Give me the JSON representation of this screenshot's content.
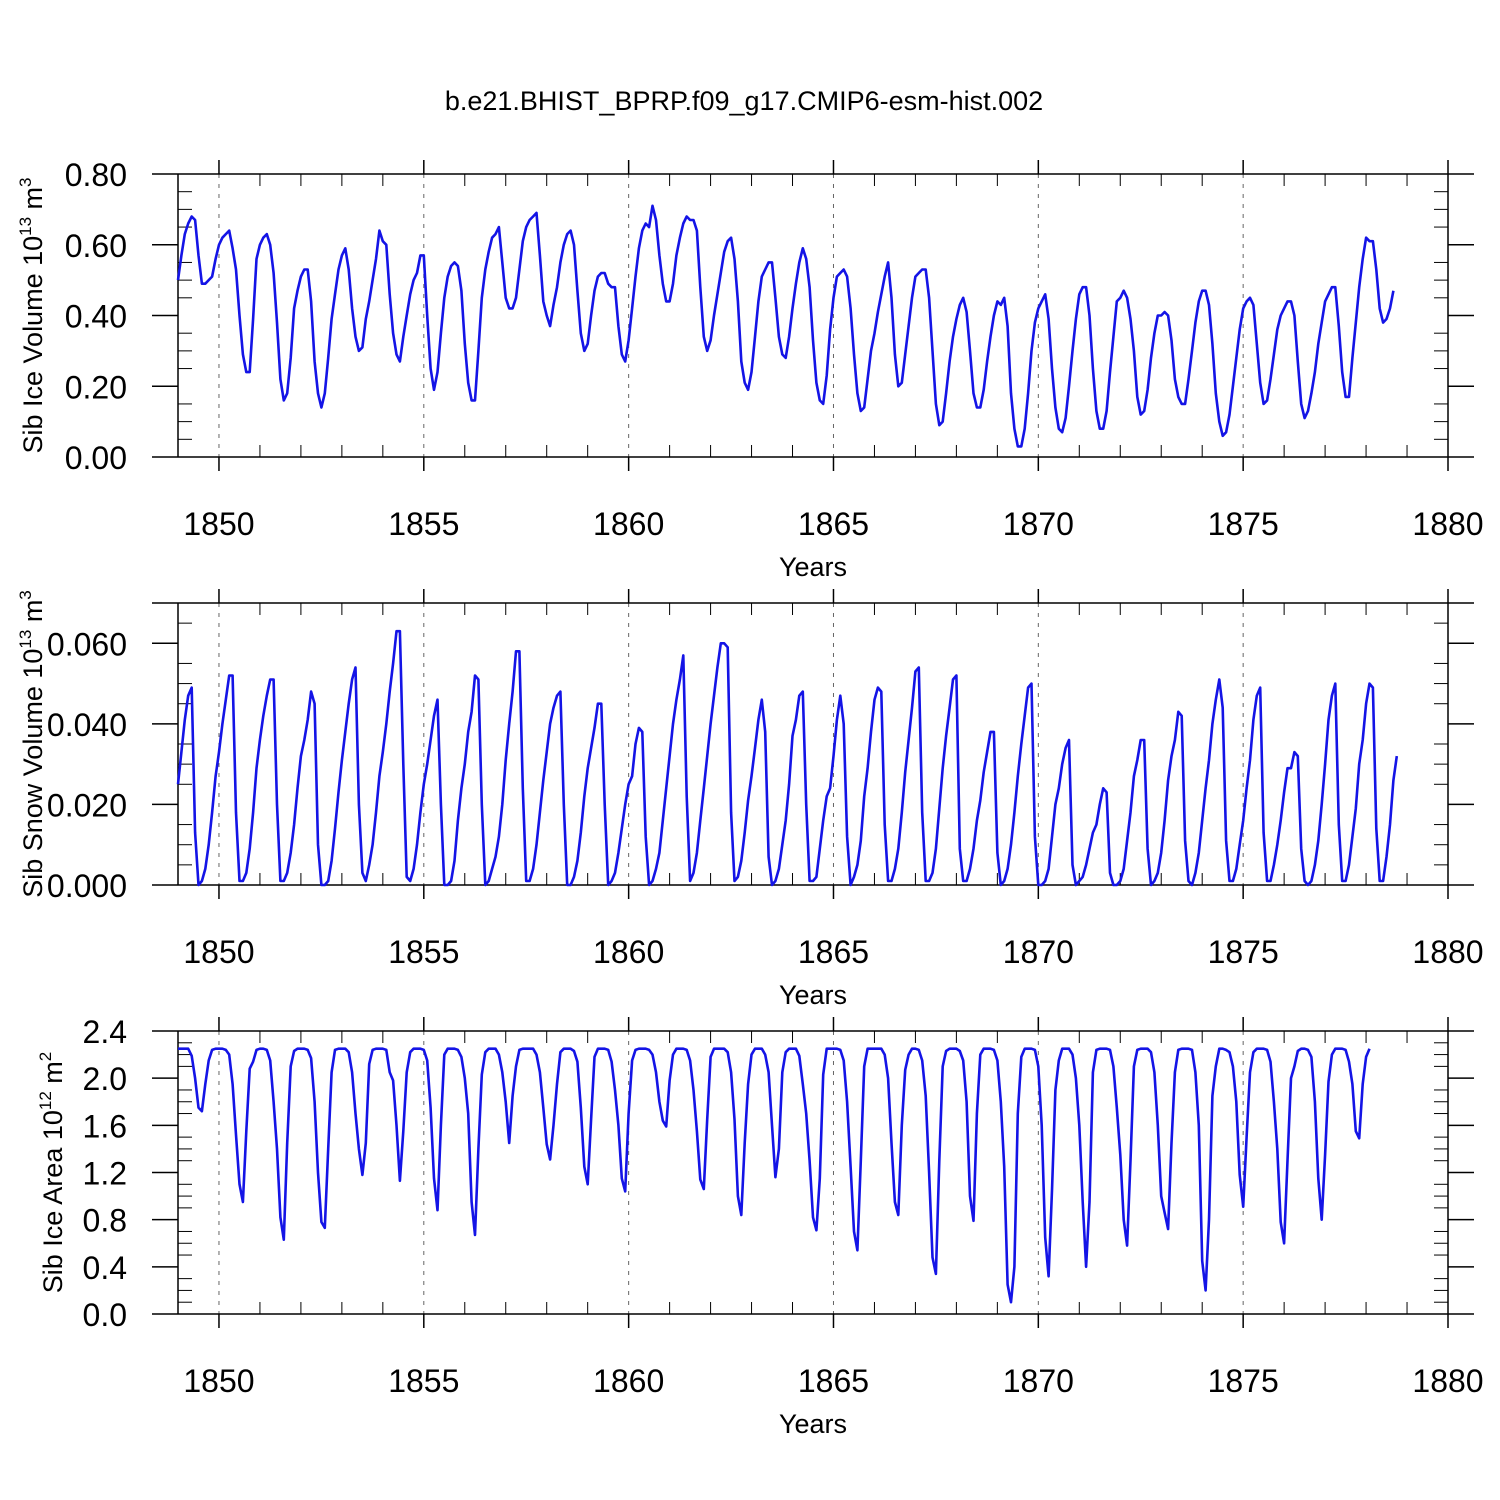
{
  "title": "b.e21.BHIST_BPRP.f09_g17.CMIP6-esm-hist.002",
  "chart_data": [
    {
      "type": "line",
      "ylabel_main": "Sib Ice Volume 10",
      "ylabel_exp": "13",
      "ylabel_unit": " m",
      "ylabel_unit_exp": "3",
      "xlabel": "Years",
      "xlim": [
        1849.0,
        1880.0
      ],
      "ylim": [
        0.0,
        0.8
      ],
      "xticks": [
        1850,
        1855,
        1860,
        1865,
        1870,
        1875,
        1880
      ],
      "xtick_labels": [
        "1850",
        "1855",
        "1860",
        "1865",
        "1870",
        "1875",
        "1880"
      ],
      "yticks": [
        0.0,
        0.2,
        0.4,
        0.6,
        0.8
      ],
      "ytick_labels": [
        "0.00",
        "0.20",
        "0.40",
        "0.60",
        "0.80"
      ],
      "yminor": 0.05,
      "line_color": "#1414e6",
      "start_year": 1849.0,
      "step": 0.0833333,
      "values": [
        0.5,
        0.57,
        0.63,
        0.66,
        0.68,
        0.67,
        0.57,
        0.49,
        0.49,
        0.5,
        0.51,
        0.56,
        0.6,
        0.62,
        0.63,
        0.64,
        0.59,
        0.53,
        0.4,
        0.29,
        0.24,
        0.24,
        0.39,
        0.56,
        0.6,
        0.62,
        0.63,
        0.6,
        0.52,
        0.38,
        0.22,
        0.16,
        0.18,
        0.28,
        0.42,
        0.47,
        0.51,
        0.53,
        0.53,
        0.44,
        0.27,
        0.18,
        0.14,
        0.18,
        0.28,
        0.39,
        0.46,
        0.53,
        0.57,
        0.59,
        0.53,
        0.42,
        0.34,
        0.3,
        0.31,
        0.39,
        0.44,
        0.5,
        0.56,
        0.64,
        0.61,
        0.6,
        0.46,
        0.35,
        0.29,
        0.27,
        0.34,
        0.4,
        0.46,
        0.5,
        0.52,
        0.57,
        0.57,
        0.4,
        0.25,
        0.19,
        0.24,
        0.35,
        0.45,
        0.51,
        0.54,
        0.55,
        0.54,
        0.47,
        0.32,
        0.21,
        0.16,
        0.16,
        0.3,
        0.45,
        0.53,
        0.58,
        0.62,
        0.63,
        0.65,
        0.55,
        0.45,
        0.42,
        0.42,
        0.45,
        0.53,
        0.61,
        0.65,
        0.67,
        0.68,
        0.69,
        0.57,
        0.44,
        0.4,
        0.37,
        0.43,
        0.48,
        0.55,
        0.6,
        0.63,
        0.64,
        0.6,
        0.47,
        0.35,
        0.3,
        0.32,
        0.4,
        0.47,
        0.51,
        0.52,
        0.52,
        0.49,
        0.48,
        0.48,
        0.37,
        0.29,
        0.27,
        0.33,
        0.42,
        0.51,
        0.59,
        0.64,
        0.66,
        0.65,
        0.71,
        0.67,
        0.57,
        0.49,
        0.44,
        0.44,
        0.49,
        0.57,
        0.62,
        0.66,
        0.68,
        0.67,
        0.67,
        0.64,
        0.48,
        0.34,
        0.3,
        0.33,
        0.4,
        0.46,
        0.52,
        0.58,
        0.61,
        0.62,
        0.56,
        0.44,
        0.27,
        0.21,
        0.19,
        0.24,
        0.34,
        0.44,
        0.51,
        0.53,
        0.55,
        0.55,
        0.45,
        0.34,
        0.29,
        0.28,
        0.34,
        0.42,
        0.49,
        0.55,
        0.59,
        0.56,
        0.48,
        0.33,
        0.21,
        0.16,
        0.15,
        0.23,
        0.36,
        0.45,
        0.51,
        0.52,
        0.53,
        0.51,
        0.42,
        0.29,
        0.18,
        0.13,
        0.14,
        0.22,
        0.3,
        0.35,
        0.41,
        0.46,
        0.51,
        0.55,
        0.45,
        0.29,
        0.2,
        0.21,
        0.29,
        0.37,
        0.45,
        0.51,
        0.52,
        0.53,
        0.53,
        0.45,
        0.3,
        0.15,
        0.09,
        0.1,
        0.18,
        0.27,
        0.34,
        0.39,
        0.43,
        0.45,
        0.41,
        0.3,
        0.18,
        0.14,
        0.14,
        0.19,
        0.27,
        0.34,
        0.4,
        0.44,
        0.43,
        0.45,
        0.37,
        0.18,
        0.08,
        0.03,
        0.03,
        0.08,
        0.18,
        0.3,
        0.38,
        0.42,
        0.44,
        0.46,
        0.39,
        0.25,
        0.14,
        0.08,
        0.07,
        0.11,
        0.2,
        0.3,
        0.39,
        0.46,
        0.48,
        0.48,
        0.4,
        0.25,
        0.13,
        0.08,
        0.08,
        0.13,
        0.24,
        0.34,
        0.44,
        0.45,
        0.47,
        0.45,
        0.39,
        0.3,
        0.17,
        0.12,
        0.13,
        0.19,
        0.28,
        0.35,
        0.4,
        0.4,
        0.41,
        0.4,
        0.33,
        0.22,
        0.17,
        0.15,
        0.15,
        0.22,
        0.3,
        0.38,
        0.44,
        0.47,
        0.47,
        0.43,
        0.32,
        0.18,
        0.1,
        0.06,
        0.07,
        0.12,
        0.2,
        0.28,
        0.36,
        0.42,
        0.44,
        0.45,
        0.43,
        0.32,
        0.21,
        0.15,
        0.16,
        0.22,
        0.29,
        0.36,
        0.4,
        0.42,
        0.44,
        0.44,
        0.4,
        0.27,
        0.15,
        0.11,
        0.13,
        0.18,
        0.24,
        0.32,
        0.38,
        0.44,
        0.46,
        0.48,
        0.48,
        0.37,
        0.24,
        0.17,
        0.17,
        0.28,
        0.38,
        0.48,
        0.56,
        0.62,
        0.61,
        0.61,
        0.53,
        0.42,
        0.38,
        0.39,
        0.42,
        0.47
      ]
    },
    {
      "type": "line",
      "ylabel_main": "Sib Snow Volume 10",
      "ylabel_exp": "13",
      "ylabel_unit": " m",
      "ylabel_unit_exp": "3",
      "xlabel": "Years",
      "xlim": [
        1849.0,
        1880.0
      ],
      "ylim": [
        0.0,
        0.07
      ],
      "xticks": [
        1850,
        1855,
        1860,
        1865,
        1870,
        1875,
        1880
      ],
      "xtick_labels": [
        "1850",
        "1855",
        "1860",
        "1865",
        "1870",
        "1875",
        "1880"
      ],
      "yticks": [
        0.0,
        0.02,
        0.04,
        0.06
      ],
      "ytick_labels": [
        "0.000",
        "0.020",
        "0.040",
        "0.060"
      ],
      "yminor": 0.005,
      "line_color": "#1414e6",
      "start_year": 1849.0,
      "step": 0.0833333,
      "values": [
        0.025,
        0.033,
        0.041,
        0.047,
        0.049,
        0.013,
        0.0,
        0.001,
        0.004,
        0.01,
        0.018,
        0.027,
        0.033,
        0.04,
        0.046,
        0.052,
        0.052,
        0.018,
        0.001,
        0.001,
        0.003,
        0.009,
        0.018,
        0.029,
        0.036,
        0.042,
        0.047,
        0.051,
        0.051,
        0.02,
        0.001,
        0.001,
        0.003,
        0.008,
        0.015,
        0.024,
        0.032,
        0.036,
        0.041,
        0.048,
        0.045,
        0.01,
        0.0,
        0.0,
        0.001,
        0.006,
        0.014,
        0.023,
        0.031,
        0.038,
        0.045,
        0.051,
        0.054,
        0.02,
        0.003,
        0.001,
        0.005,
        0.01,
        0.018,
        0.027,
        0.033,
        0.04,
        0.048,
        0.055,
        0.063,
        0.063,
        0.03,
        0.002,
        0.001,
        0.004,
        0.01,
        0.018,
        0.025,
        0.03,
        0.036,
        0.042,
        0.046,
        0.02,
        0.0,
        0.0,
        0.001,
        0.006,
        0.016,
        0.024,
        0.03,
        0.038,
        0.043,
        0.052,
        0.051,
        0.02,
        0.0,
        0.001,
        0.004,
        0.007,
        0.012,
        0.02,
        0.031,
        0.04,
        0.048,
        0.058,
        0.058,
        0.024,
        0.001,
        0.001,
        0.004,
        0.01,
        0.018,
        0.026,
        0.033,
        0.04,
        0.044,
        0.047,
        0.048,
        0.02,
        0.0,
        0.0,
        0.002,
        0.006,
        0.013,
        0.022,
        0.029,
        0.034,
        0.039,
        0.045,
        0.045,
        0.02,
        0.0,
        0.001,
        0.003,
        0.008,
        0.014,
        0.02,
        0.025,
        0.027,
        0.035,
        0.039,
        0.038,
        0.012,
        0.0,
        0.001,
        0.004,
        0.008,
        0.016,
        0.024,
        0.032,
        0.04,
        0.046,
        0.051,
        0.057,
        0.022,
        0.001,
        0.003,
        0.008,
        0.016,
        0.024,
        0.032,
        0.04,
        0.047,
        0.054,
        0.06,
        0.06,
        0.059,
        0.018,
        0.001,
        0.002,
        0.006,
        0.013,
        0.021,
        0.027,
        0.034,
        0.041,
        0.046,
        0.038,
        0.007,
        0.0,
        0.001,
        0.004,
        0.01,
        0.016,
        0.025,
        0.037,
        0.041,
        0.047,
        0.048,
        0.02,
        0.001,
        0.001,
        0.002,
        0.009,
        0.016,
        0.022,
        0.024,
        0.032,
        0.041,
        0.047,
        0.04,
        0.012,
        0.0,
        0.002,
        0.005,
        0.011,
        0.022,
        0.029,
        0.038,
        0.046,
        0.049,
        0.048,
        0.015,
        0.001,
        0.001,
        0.004,
        0.009,
        0.018,
        0.028,
        0.036,
        0.044,
        0.053,
        0.054,
        0.018,
        0.001,
        0.001,
        0.003,
        0.009,
        0.019,
        0.029,
        0.037,
        0.044,
        0.051,
        0.052,
        0.009,
        0.001,
        0.001,
        0.004,
        0.009,
        0.016,
        0.021,
        0.028,
        0.033,
        0.038,
        0.038,
        0.008,
        0.0,
        0.001,
        0.004,
        0.01,
        0.018,
        0.027,
        0.035,
        0.042,
        0.049,
        0.05,
        0.012,
        0.0,
        0.0,
        0.001,
        0.004,
        0.012,
        0.02,
        0.024,
        0.03,
        0.034,
        0.036,
        0.005,
        0.0,
        0.001,
        0.002,
        0.005,
        0.009,
        0.013,
        0.015,
        0.02,
        0.024,
        0.023,
        0.003,
        0.0,
        0.0,
        0.001,
        0.004,
        0.011,
        0.018,
        0.027,
        0.031,
        0.036,
        0.036,
        0.009,
        0.0,
        0.001,
        0.003,
        0.008,
        0.016,
        0.026,
        0.032,
        0.036,
        0.043,
        0.042,
        0.011,
        0.001,
        0.0,
        0.003,
        0.008,
        0.016,
        0.024,
        0.031,
        0.04,
        0.046,
        0.051,
        0.044,
        0.011,
        0.001,
        0.001,
        0.004,
        0.01,
        0.016,
        0.024,
        0.031,
        0.041,
        0.047,
        0.049,
        0.013,
        0.001,
        0.001,
        0.005,
        0.01,
        0.016,
        0.023,
        0.029,
        0.029,
        0.033,
        0.032,
        0.009,
        0.001,
        0.0,
        0.001,
        0.005,
        0.011,
        0.02,
        0.03,
        0.041,
        0.047,
        0.05,
        0.015,
        0.001,
        0.001,
        0.005,
        0.012,
        0.019,
        0.03,
        0.036,
        0.045,
        0.05,
        0.049,
        0.014,
        0.001,
        0.001,
        0.007,
        0.015,
        0.026,
        0.032
      ]
    },
    {
      "type": "line",
      "ylabel_main": "Sib Ice Area 10",
      "ylabel_exp": "12",
      "ylabel_unit": " m",
      "ylabel_unit_exp": "2",
      "xlabel": "Years",
      "xlim": [
        1849.0,
        1880.0
      ],
      "ylim": [
        0.0,
        2.4
      ],
      "xticks": [
        1850,
        1855,
        1860,
        1865,
        1870,
        1875,
        1880
      ],
      "xtick_labels": [
        "1850",
        "1855",
        "1860",
        "1865",
        "1870",
        "1875",
        "1880"
      ],
      "yticks": [
        0.0,
        0.4,
        0.8,
        1.2,
        1.6,
        2.0,
        2.4
      ],
      "ytick_labels": [
        "0.0",
        "0.4",
        "0.8",
        "1.2",
        "1.6",
        "2.0",
        "2.4"
      ],
      "yminor": 0.1,
      "line_color": "#1414e6",
      "start_year": 1849.0,
      "step": 0.0833333,
      "values": [
        2.25,
        2.25,
        2.25,
        2.25,
        2.19,
        2.0,
        1.75,
        1.72,
        1.95,
        2.15,
        2.24,
        2.25,
        2.25,
        2.25,
        2.24,
        2.2,
        1.95,
        1.52,
        1.1,
        0.95,
        1.55,
        2.08,
        2.14,
        2.24,
        2.25,
        2.25,
        2.24,
        2.15,
        1.8,
        1.4,
        0.82,
        0.63,
        1.45,
        2.1,
        2.23,
        2.25,
        2.25,
        2.25,
        2.24,
        2.17,
        1.8,
        1.2,
        0.78,
        0.73,
        1.4,
        2.05,
        2.24,
        2.25,
        2.25,
        2.25,
        2.22,
        2.05,
        1.7,
        1.4,
        1.18,
        1.45,
        2.12,
        2.24,
        2.25,
        2.25,
        2.25,
        2.24,
        2.05,
        1.98,
        1.6,
        1.13,
        1.55,
        2.05,
        2.22,
        2.25,
        2.25,
        2.25,
        2.24,
        2.15,
        1.75,
        1.15,
        0.88,
        1.6,
        2.2,
        2.25,
        2.25,
        2.25,
        2.24,
        2.18,
        2.0,
        1.7,
        0.95,
        0.67,
        1.4,
        2.03,
        2.22,
        2.25,
        2.25,
        2.25,
        2.2,
        2.05,
        1.8,
        1.45,
        1.85,
        2.1,
        2.24,
        2.25,
        2.25,
        2.25,
        2.25,
        2.2,
        2.05,
        1.75,
        1.44,
        1.31,
        1.6,
        1.95,
        2.22,
        2.25,
        2.25,
        2.25,
        2.23,
        2.14,
        1.75,
        1.25,
        1.1,
        1.65,
        2.18,
        2.25,
        2.25,
        2.25,
        2.24,
        2.14,
        1.9,
        1.6,
        1.15,
        1.04,
        1.7,
        2.15,
        2.24,
        2.25,
        2.25,
        2.25,
        2.24,
        2.2,
        2.05,
        1.8,
        1.64,
        1.59,
        1.98,
        2.2,
        2.25,
        2.25,
        2.25,
        2.24,
        2.15,
        1.9,
        1.55,
        1.14,
        1.06,
        1.65,
        2.18,
        2.25,
        2.25,
        2.25,
        2.25,
        2.22,
        2.05,
        1.65,
        1.0,
        0.84,
        1.45,
        1.95,
        2.2,
        2.25,
        2.25,
        2.25,
        2.2,
        2.05,
        1.6,
        1.16,
        1.4,
        2.05,
        2.22,
        2.25,
        2.25,
        2.25,
        2.19,
        1.95,
        1.7,
        1.3,
        0.82,
        0.71,
        1.15,
        2.03,
        2.25,
        2.25,
        2.25,
        2.25,
        2.24,
        2.15,
        1.8,
        1.25,
        0.7,
        0.54,
        1.3,
        2.1,
        2.25,
        2.25,
        2.25,
        2.25,
        2.25,
        2.2,
        2.0,
        1.45,
        0.95,
        0.84,
        1.6,
        2.07,
        2.2,
        2.25,
        2.25,
        2.24,
        2.15,
        1.85,
        1.2,
        0.48,
        0.34,
        1.3,
        2.1,
        2.23,
        2.25,
        2.25,
        2.25,
        2.23,
        2.15,
        1.8,
        1.0,
        0.79,
        1.7,
        2.2,
        2.25,
        2.25,
        2.25,
        2.24,
        2.15,
        1.8,
        1.25,
        0.25,
        0.1,
        0.4,
        1.7,
        2.18,
        2.25,
        2.25,
        2.25,
        2.24,
        2.1,
        1.6,
        0.65,
        0.32,
        1.05,
        1.9,
        2.15,
        2.25,
        2.25,
        2.25,
        2.2,
        2.0,
        1.6,
        0.95,
        0.4,
        0.95,
        2.05,
        2.24,
        2.25,
        2.25,
        2.25,
        2.24,
        2.1,
        1.75,
        1.35,
        0.8,
        0.58,
        1.3,
        2.1,
        2.24,
        2.25,
        2.25,
        2.25,
        2.22,
        2.05,
        1.6,
        1.0,
        0.86,
        0.72,
        1.45,
        2.05,
        2.24,
        2.25,
        2.25,
        2.25,
        2.24,
        2.05,
        1.6,
        0.45,
        0.2,
        0.8,
        1.85,
        2.1,
        2.25,
        2.25,
        2.24,
        2.22,
        2.1,
        1.8,
        1.18,
        0.91,
        1.5,
        2.05,
        2.22,
        2.25,
        2.25,
        2.25,
        2.24,
        2.14,
        1.8,
        1.4,
        0.78,
        0.6,
        1.3,
        2.0,
        2.1,
        2.23,
        2.25,
        2.25,
        2.24,
        2.18,
        1.8,
        1.15,
        0.8,
        1.35,
        1.97,
        2.2,
        2.25,
        2.25,
        2.25,
        2.24,
        2.14,
        1.95,
        1.55,
        1.49,
        1.95,
        2.18,
        2.25
      ]
    }
  ]
}
